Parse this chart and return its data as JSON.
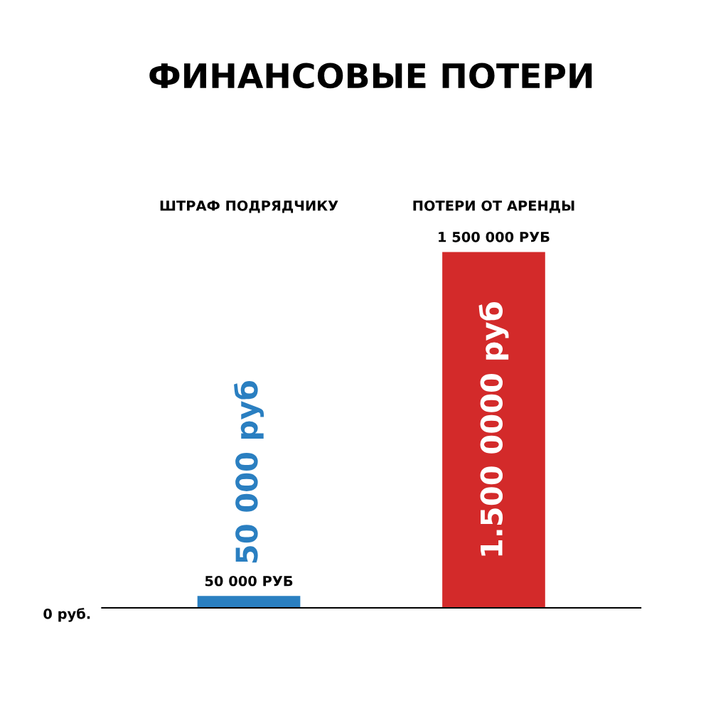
{
  "chart_data": {
    "type": "bar",
    "title": "ФИНАНСОВЫЕ ПОТЕРИ",
    "categories": [
      "ШТРАФ ПОДРЯДЧИКУ",
      "ПОТЕРИ ОТ АРЕНДЫ"
    ],
    "values": [
      50000,
      1500000
    ],
    "colors": [
      "#2a7fc1",
      "#d32a2a"
    ],
    "value_labels": [
      "50 000 РУБ",
      "1 500 000 РУБ"
    ],
    "annotations": [
      "0 руб.",
      "50 000 руб",
      "1.500 0000 руб"
    ]
  }
}
